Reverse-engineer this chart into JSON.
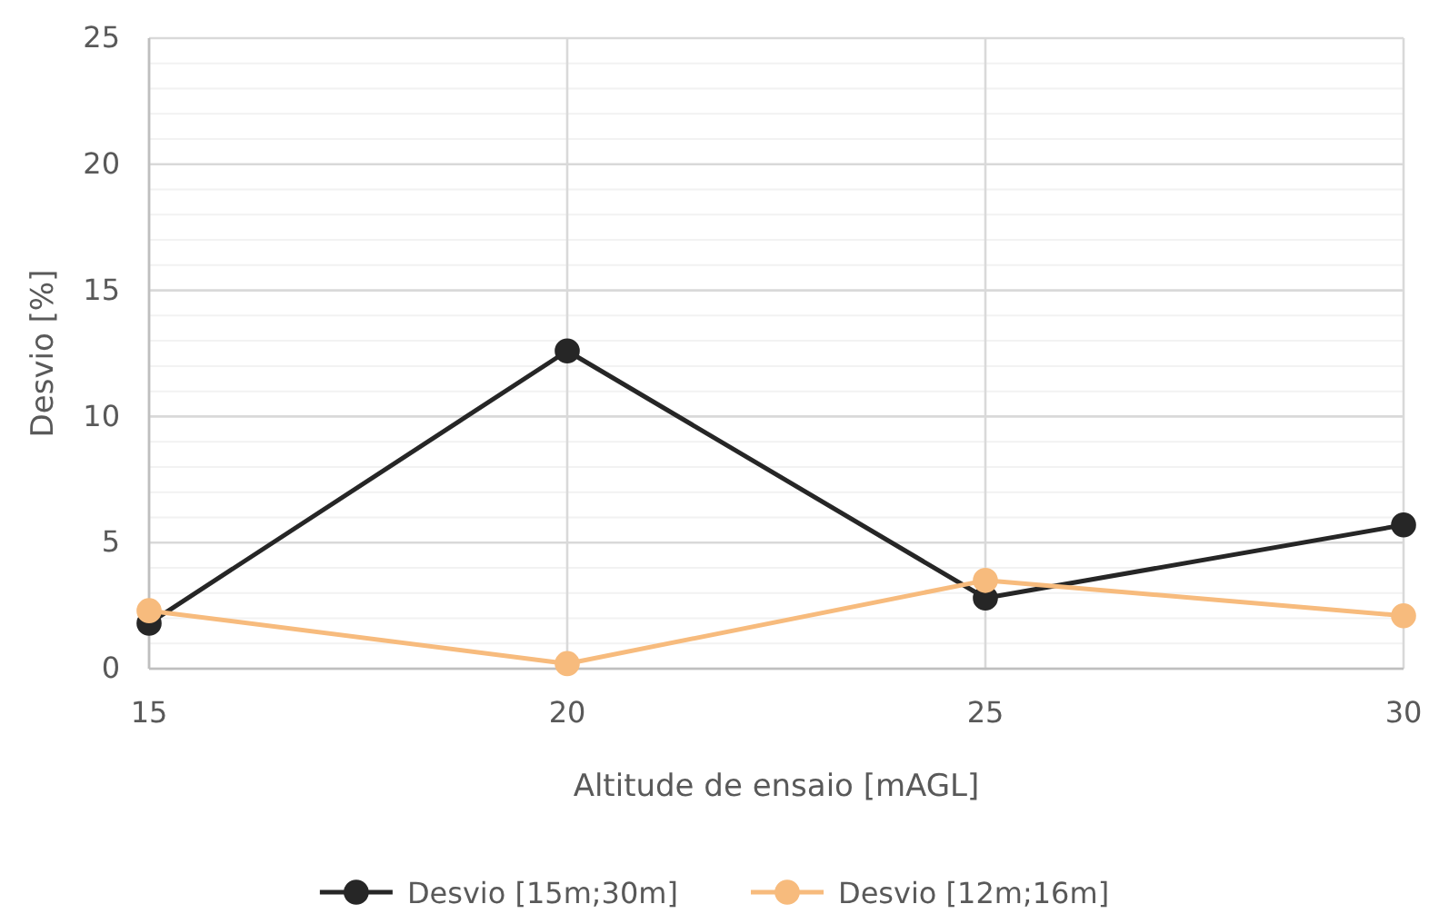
{
  "chart_data": {
    "type": "line",
    "xlabel": "Altitude de ensaio [mAGL]",
    "ylabel": "Desvio [%]",
    "x": [
      15,
      20,
      25,
      30
    ],
    "xlim": [
      15,
      30
    ],
    "xticks": [
      15,
      20,
      25,
      30
    ],
    "ylim": [
      0,
      25
    ],
    "yticks": [
      0,
      {
        "value": 1,
        "label": null
      },
      {
        "value": 2,
        "label": null
      },
      {
        "value": 3,
        "label": null
      },
      {
        "value": 4,
        "label": null
      },
      5,
      {
        "value": 6,
        "label": null
      },
      {
        "value": 7,
        "label": null
      },
      {
        "value": 8,
        "label": null
      },
      {
        "value": 9,
        "label": null
      },
      10,
      {
        "value": 11,
        "label": null
      },
      {
        "value": 12,
        "label": null
      },
      {
        "value": 13,
        "label": null
      },
      {
        "value": 14,
        "label": null
      },
      15,
      {
        "value": 16,
        "label": null
      },
      {
        "value": 17,
        "label": null
      },
      {
        "value": 18,
        "label": null
      },
      {
        "value": 19,
        "label": null
      },
      20,
      {
        "value": 21,
        "label": null
      },
      {
        "value": 22,
        "label": null
      },
      {
        "value": 23,
        "label": null
      },
      {
        "value": 24,
        "label": null
      },
      25
    ],
    "series": [
      {
        "name": "Desvio [15m;30m]",
        "color": "#262626",
        "values": [
          1.8,
          12.6,
          2.8,
          5.7
        ]
      },
      {
        "name": "Desvio [12m;16m]",
        "color": "#f7bb7d",
        "values": [
          2.3,
          0.2,
          3.5,
          2.1
        ]
      }
    ],
    "grid": true,
    "legend": "bottom",
    "marker": "circle",
    "line_style": "solid"
  }
}
